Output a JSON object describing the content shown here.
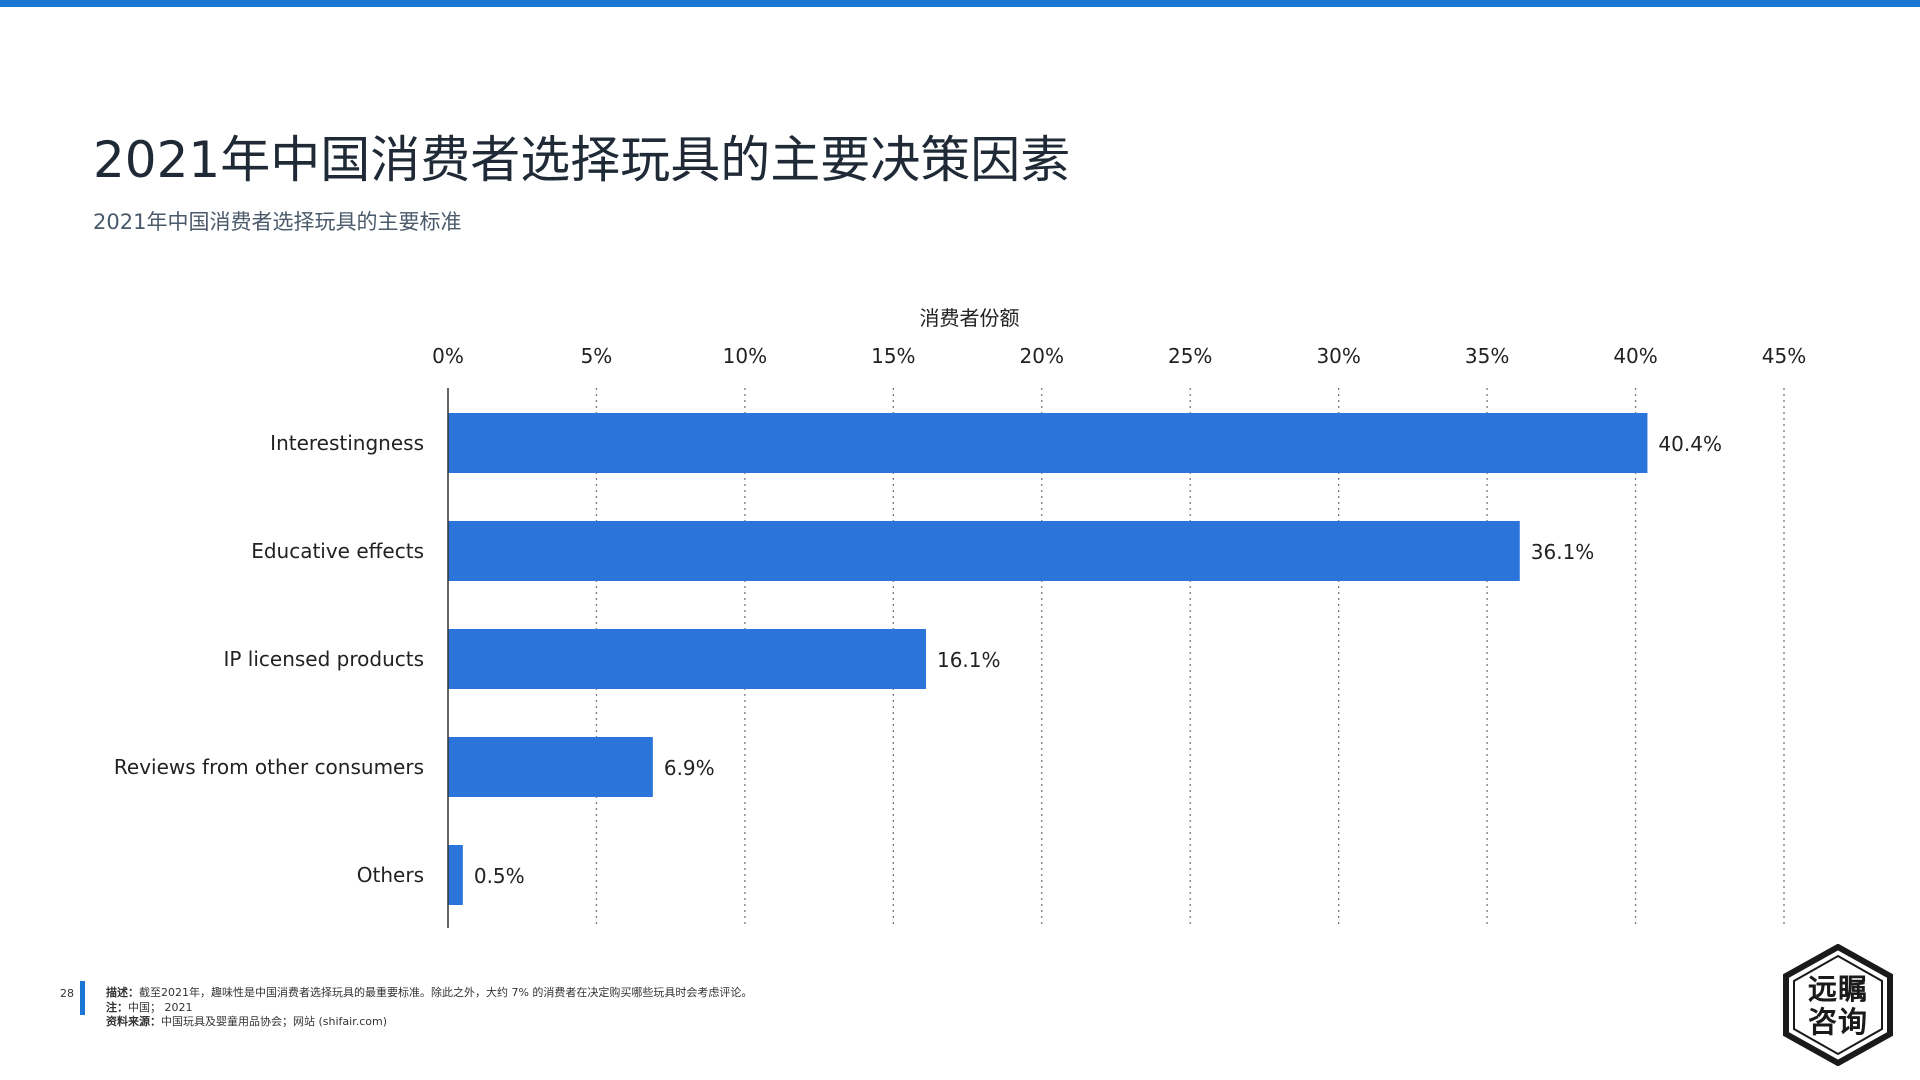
{
  "page": {
    "accent_color": "#1976d2",
    "title": "2021年中国消费者选择玩具的主要决策因素",
    "subtitle": "2021年中国消费者选择玩具的主要标准",
    "page_number": "28",
    "footer": {
      "desc_label": "描述：",
      "desc_text": "截至2021年，趣味性是中国消费者选择玩具的最重要标准。除此之外，大约 7% 的消费者在决定购买哪些玩具时会考虑评论。",
      "note_label": "注：",
      "note_text": "中国； 2021",
      "source_label": "资料来源：",
      "source_text": "中国玩具及婴童用品协会；网站 (shifair.com)"
    },
    "logo_text_line1": "远瞩",
    "logo_text_line2": "咨询"
  },
  "chart_data": {
    "type": "bar",
    "orientation": "horizontal",
    "xlabel": "消费者份额",
    "categories": [
      "Interestingness",
      "Educative effects",
      "IP licensed products",
      "Reviews from other consumers",
      "Others"
    ],
    "values": [
      40.4,
      36.1,
      16.1,
      6.9,
      0.5
    ],
    "value_labels": [
      "40.4%",
      "36.1%",
      "16.1%",
      "6.9%",
      "0.5%"
    ],
    "xlim": [
      0,
      45
    ],
    "xticks": [
      0,
      5,
      10,
      15,
      20,
      25,
      30,
      35,
      40,
      45
    ],
    "xtick_labels": [
      "0%",
      "5%",
      "10%",
      "15%",
      "20%",
      "25%",
      "30%",
      "35%",
      "40%",
      "45%"
    ],
    "x_axis_position": "top",
    "grid": "vertical dotted",
    "bar_color": "#2b74d9"
  }
}
